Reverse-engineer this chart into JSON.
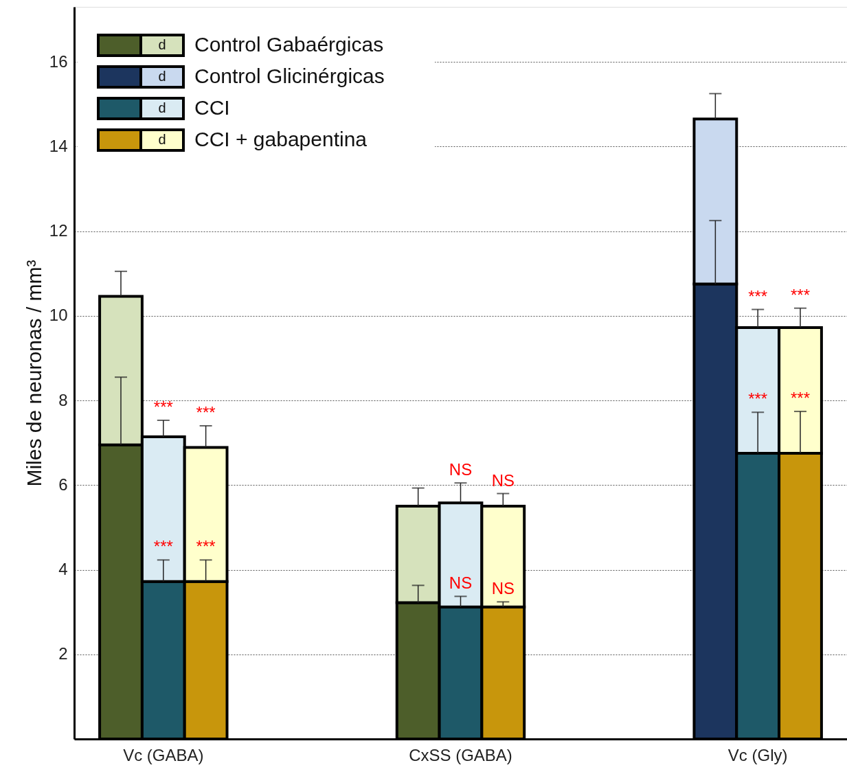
{
  "chart_data": {
    "type": "bar",
    "ylabel": "Miles de neuronas / mm³",
    "categories": [
      null,
      "Vc (GABA)",
      null,
      null,
      null,
      null,
      null,
      null,
      "CxSS (GABA)",
      null,
      null,
      null,
      null,
      null,
      null,
      "Vc (Gly)",
      null
    ],
    "annotations": [
      "d",
      "d",
      "d",
      "d"
    ],
    "stacked": true,
    "ylim": [
      0,
      17.3
    ],
    "yticks": [
      2,
      4,
      6,
      8,
      10,
      12,
      14,
      16
    ],
    "grid": "y",
    "legend": "top left",
    "series": [
      {
        "name": "Control Gabaérgicas",
        "color": "#4d5e2a",
        "values": [
          6.95,
          null,
          null,
          null,
          null,
          null,
          null,
          3.22,
          null,
          null,
          null,
          null,
          null,
          null,
          null,
          null,
          null
        ],
        "errors": [
          [
            6.95,
            8.55
          ],
          null,
          null,
          null,
          null,
          null,
          null,
          [
            3.22,
            3.63
          ],
          null,
          null,
          null,
          null,
          null,
          null,
          null,
          null,
          null
        ]
      },
      {
        "color": "#d6e2bc",
        "values": [
          3.51,
          null,
          null,
          null,
          null,
          null,
          null,
          2.28,
          null,
          null,
          null,
          null,
          null,
          null,
          null,
          null,
          null
        ],
        "errors": [
          [
            10.46,
            11.05
          ],
          null,
          null,
          null,
          null,
          null,
          null,
          [
            5.5,
            5.93
          ],
          null,
          null,
          null,
          null,
          null,
          null,
          null,
          null,
          null
        ]
      },
      {
        "name": "Control Glicinérgicas",
        "color": "#1c355e",
        "values": [
          null,
          null,
          null,
          null,
          null,
          null,
          null,
          null,
          null,
          null,
          null,
          null,
          null,
          null,
          10.75,
          null,
          null
        ],
        "errors": [
          null,
          null,
          null,
          null,
          null,
          null,
          null,
          null,
          null,
          null,
          null,
          null,
          null,
          null,
          [
            10.75,
            12.25
          ],
          null,
          null
        ]
      },
      {
        "color": "#c9d9ef",
        "values": [
          null,
          null,
          null,
          null,
          null,
          null,
          null,
          null,
          null,
          null,
          null,
          null,
          null,
          null,
          3.9,
          null,
          null
        ],
        "errors": [
          null,
          null,
          null,
          null,
          null,
          null,
          null,
          null,
          null,
          null,
          null,
          null,
          null,
          null,
          [
            14.65,
            15.25
          ],
          null,
          null
        ]
      },
      {
        "name": "CCI",
        "color": "#1e5968",
        "values": [
          null,
          3.72,
          null,
          null,
          null,
          null,
          null,
          null,
          3.12,
          null,
          null,
          null,
          null,
          null,
          null,
          6.75,
          null
        ],
        "errors": [
          null,
          [
            3.72,
            4.23
          ],
          null,
          null,
          null,
          null,
          null,
          null,
          [
            3.12,
            3.37
          ],
          null,
          null,
          null,
          null,
          null,
          null,
          [
            6.75,
            7.72
          ],
          null
        ],
        "value_labels": [
          null,
          "***",
          null,
          null,
          null,
          null,
          null,
          null,
          "NS",
          null,
          null,
          null,
          null,
          null,
          null,
          "***",
          null
        ]
      },
      {
        "color": "#daebf3",
        "values": [
          null,
          3.42,
          null,
          null,
          null,
          null,
          null,
          null,
          2.46,
          null,
          null,
          null,
          null,
          null,
          null,
          2.97,
          null
        ],
        "errors": [
          null,
          [
            7.14,
            7.53
          ],
          null,
          null,
          null,
          null,
          null,
          null,
          [
            5.58,
            6.05
          ],
          null,
          null,
          null,
          null,
          null,
          null,
          [
            9.72,
            10.15
          ],
          null
        ],
        "value_labels": [
          null,
          "***",
          null,
          null,
          null,
          null,
          null,
          null,
          "NS",
          null,
          null,
          null,
          null,
          null,
          null,
          "***",
          null
        ]
      },
      {
        "name": "CCI + gabapentina",
        "color": "#c8960c",
        "values": [
          null,
          null,
          3.72,
          null,
          null,
          null,
          null,
          null,
          null,
          3.12,
          null,
          null,
          null,
          null,
          null,
          null,
          6.75
        ],
        "errors": [
          null,
          null,
          [
            3.72,
            4.23
          ],
          null,
          null,
          null,
          null,
          null,
          null,
          [
            3.12,
            3.24
          ],
          null,
          null,
          null,
          null,
          null,
          null,
          [
            6.75,
            7.74
          ]
        ],
        "value_labels": [
          null,
          null,
          "***",
          null,
          null,
          null,
          null,
          null,
          null,
          "NS",
          null,
          null,
          null,
          null,
          null,
          null,
          "***"
        ]
      },
      {
        "color": "#ffffcc",
        "values": [
          null,
          null,
          3.17,
          null,
          null,
          null,
          null,
          null,
          null,
          2.38,
          null,
          null,
          null,
          null,
          null,
          null,
          2.97
        ],
        "errors": [
          null,
          null,
          [
            6.89,
            7.4
          ],
          null,
          null,
          null,
          null,
          null,
          null,
          [
            5.5,
            5.8
          ],
          null,
          null,
          null,
          null,
          null,
          null,
          [
            9.72,
            10.18
          ]
        ],
        "value_labels": [
          null,
          null,
          "***",
          null,
          null,
          null,
          null,
          null,
          null,
          "NS",
          null,
          null,
          null,
          null,
          null,
          null,
          "***"
        ]
      }
    ]
  }
}
